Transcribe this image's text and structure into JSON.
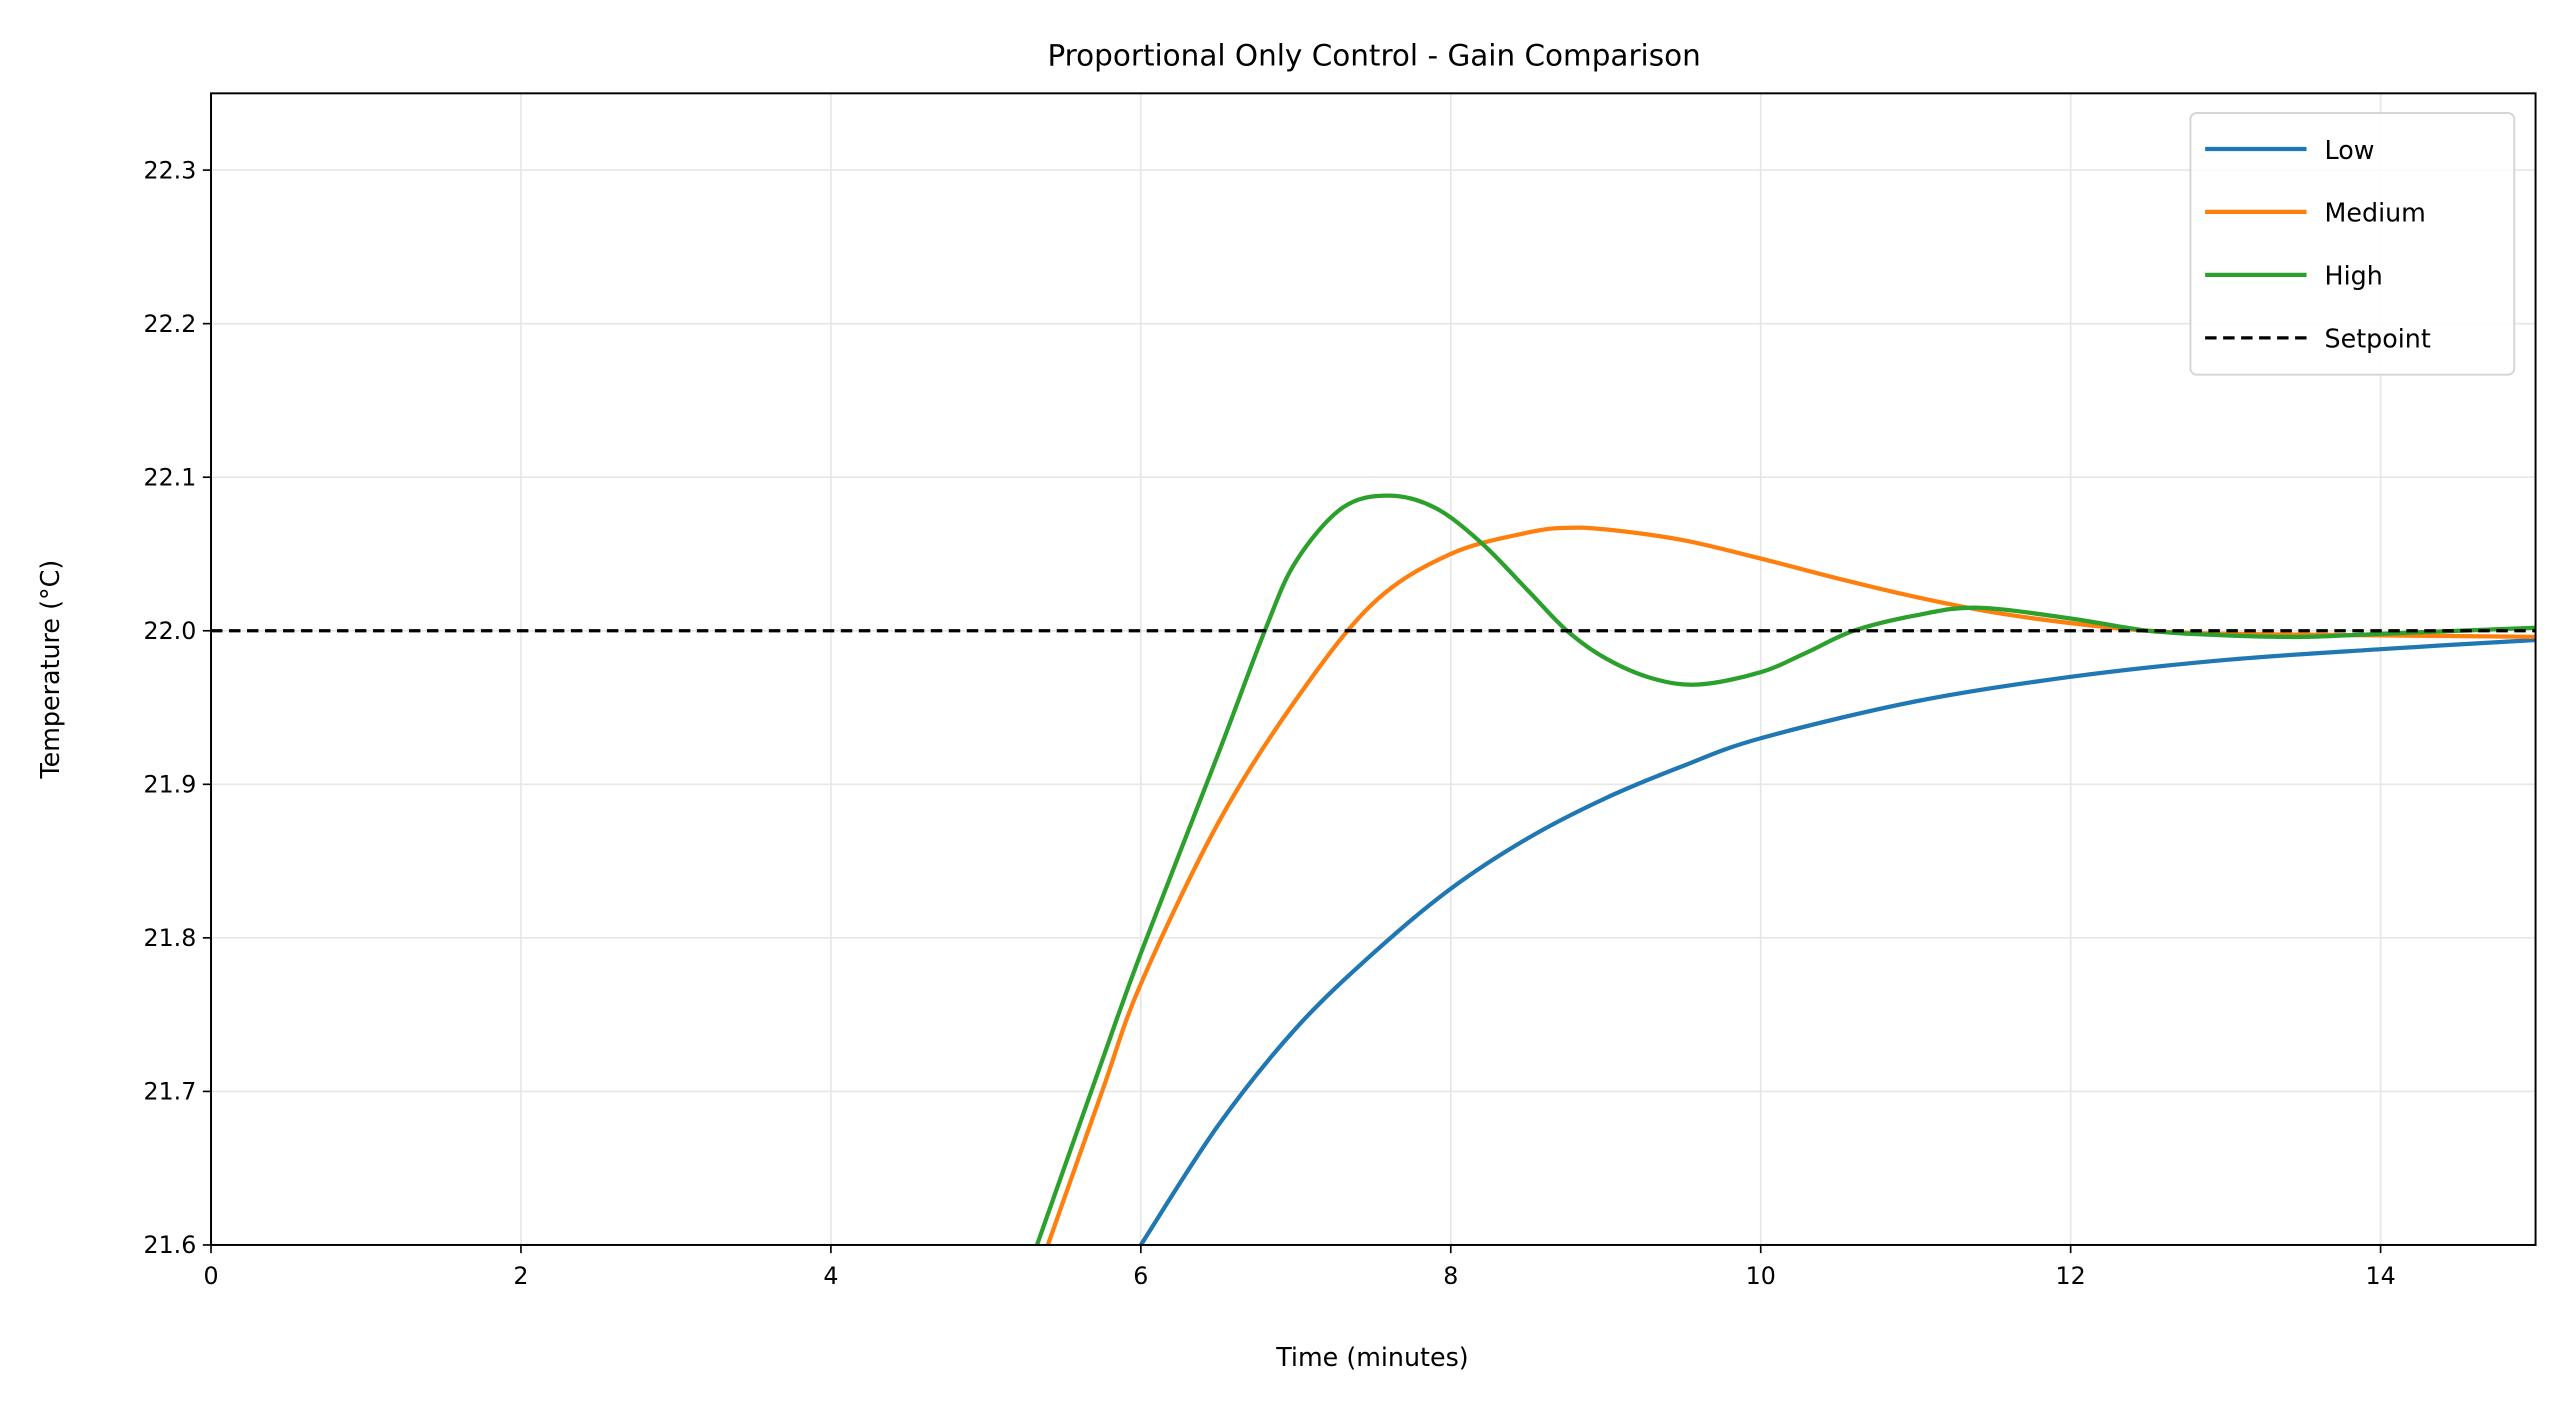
{
  "chart_data": {
    "type": "line",
    "title": "Proportional Only Control - Gain Comparison",
    "xlabel": "Time (minutes)",
    "ylabel": "Temperature (°C)",
    "xlim": [
      0,
      15
    ],
    "ylim": [
      21.6,
      22.35
    ],
    "xticks": [
      "0",
      "2",
      "4",
      "6",
      "8",
      "10",
      "12",
      "14"
    ],
    "xtick_values": [
      0,
      2,
      4,
      6,
      8,
      10,
      12,
      14
    ],
    "yticks": [
      "21.6",
      "21.7",
      "21.8",
      "21.9",
      "22.0",
      "22.1",
      "22.2",
      "22.3"
    ],
    "ytick_values": [
      21.6,
      21.7,
      21.8,
      21.9,
      22.0,
      22.1,
      22.2,
      22.3
    ],
    "grid": true,
    "legend_position": "top-right",
    "series": [
      {
        "name": "Low",
        "color": "#1f77b4",
        "style": "solid",
        "x": [
          6,
          6.5,
          7,
          7.5,
          8,
          8.5,
          9,
          9.5,
          10,
          11,
          12,
          13,
          14,
          15
        ],
        "y": [
          21.6,
          21.678,
          21.741,
          21.79,
          21.832,
          21.865,
          21.891,
          21.912,
          21.93,
          21.954,
          21.97,
          21.981,
          21.988,
          21.994
        ]
      },
      {
        "name": "Medium",
        "color": "#ff7f0e",
        "style": "solid",
        "x": [
          5.4,
          5.75,
          6,
          6.5,
          7,
          7.5,
          8,
          8.5,
          8.75,
          9,
          9.5,
          10,
          10.5,
          11,
          11.5,
          12,
          12.5,
          13,
          14,
          15
        ],
        "y": [
          21.6,
          21.7,
          21.77,
          21.875,
          21.955,
          22.018,
          22.05,
          22.064,
          22.067,
          22.066,
          22.059,
          22.047,
          22.034,
          22.022,
          22.012,
          22.005,
          22.0,
          21.998,
          21.997,
          21.996
        ]
      },
      {
        "name": "High",
        "color": "#2ca02c",
        "style": "solid",
        "x": [
          5.33,
          5.75,
          6,
          6.5,
          6.8,
          7,
          7.3,
          7.6,
          7.9,
          8.2,
          8.5,
          8.75,
          9,
          9.3,
          9.6,
          10,
          10.3,
          10.6,
          11,
          11.4,
          12,
          12.5,
          13,
          13.5,
          14,
          15
        ],
        "y": [
          21.6,
          21.72,
          21.79,
          21.92,
          22.0,
          22.045,
          22.08,
          22.088,
          22.08,
          22.057,
          22.026,
          22.0,
          21.982,
          21.969,
          21.965,
          21.973,
          21.986,
          22.0,
          22.01,
          22.015,
          22.008,
          22.0,
          21.997,
          21.996,
          21.998,
          22.002
        ]
      },
      {
        "name": "Setpoint",
        "color": "#000000",
        "style": "dashed",
        "x": [
          0,
          15
        ],
        "y": [
          22.0,
          22.0
        ]
      }
    ]
  }
}
